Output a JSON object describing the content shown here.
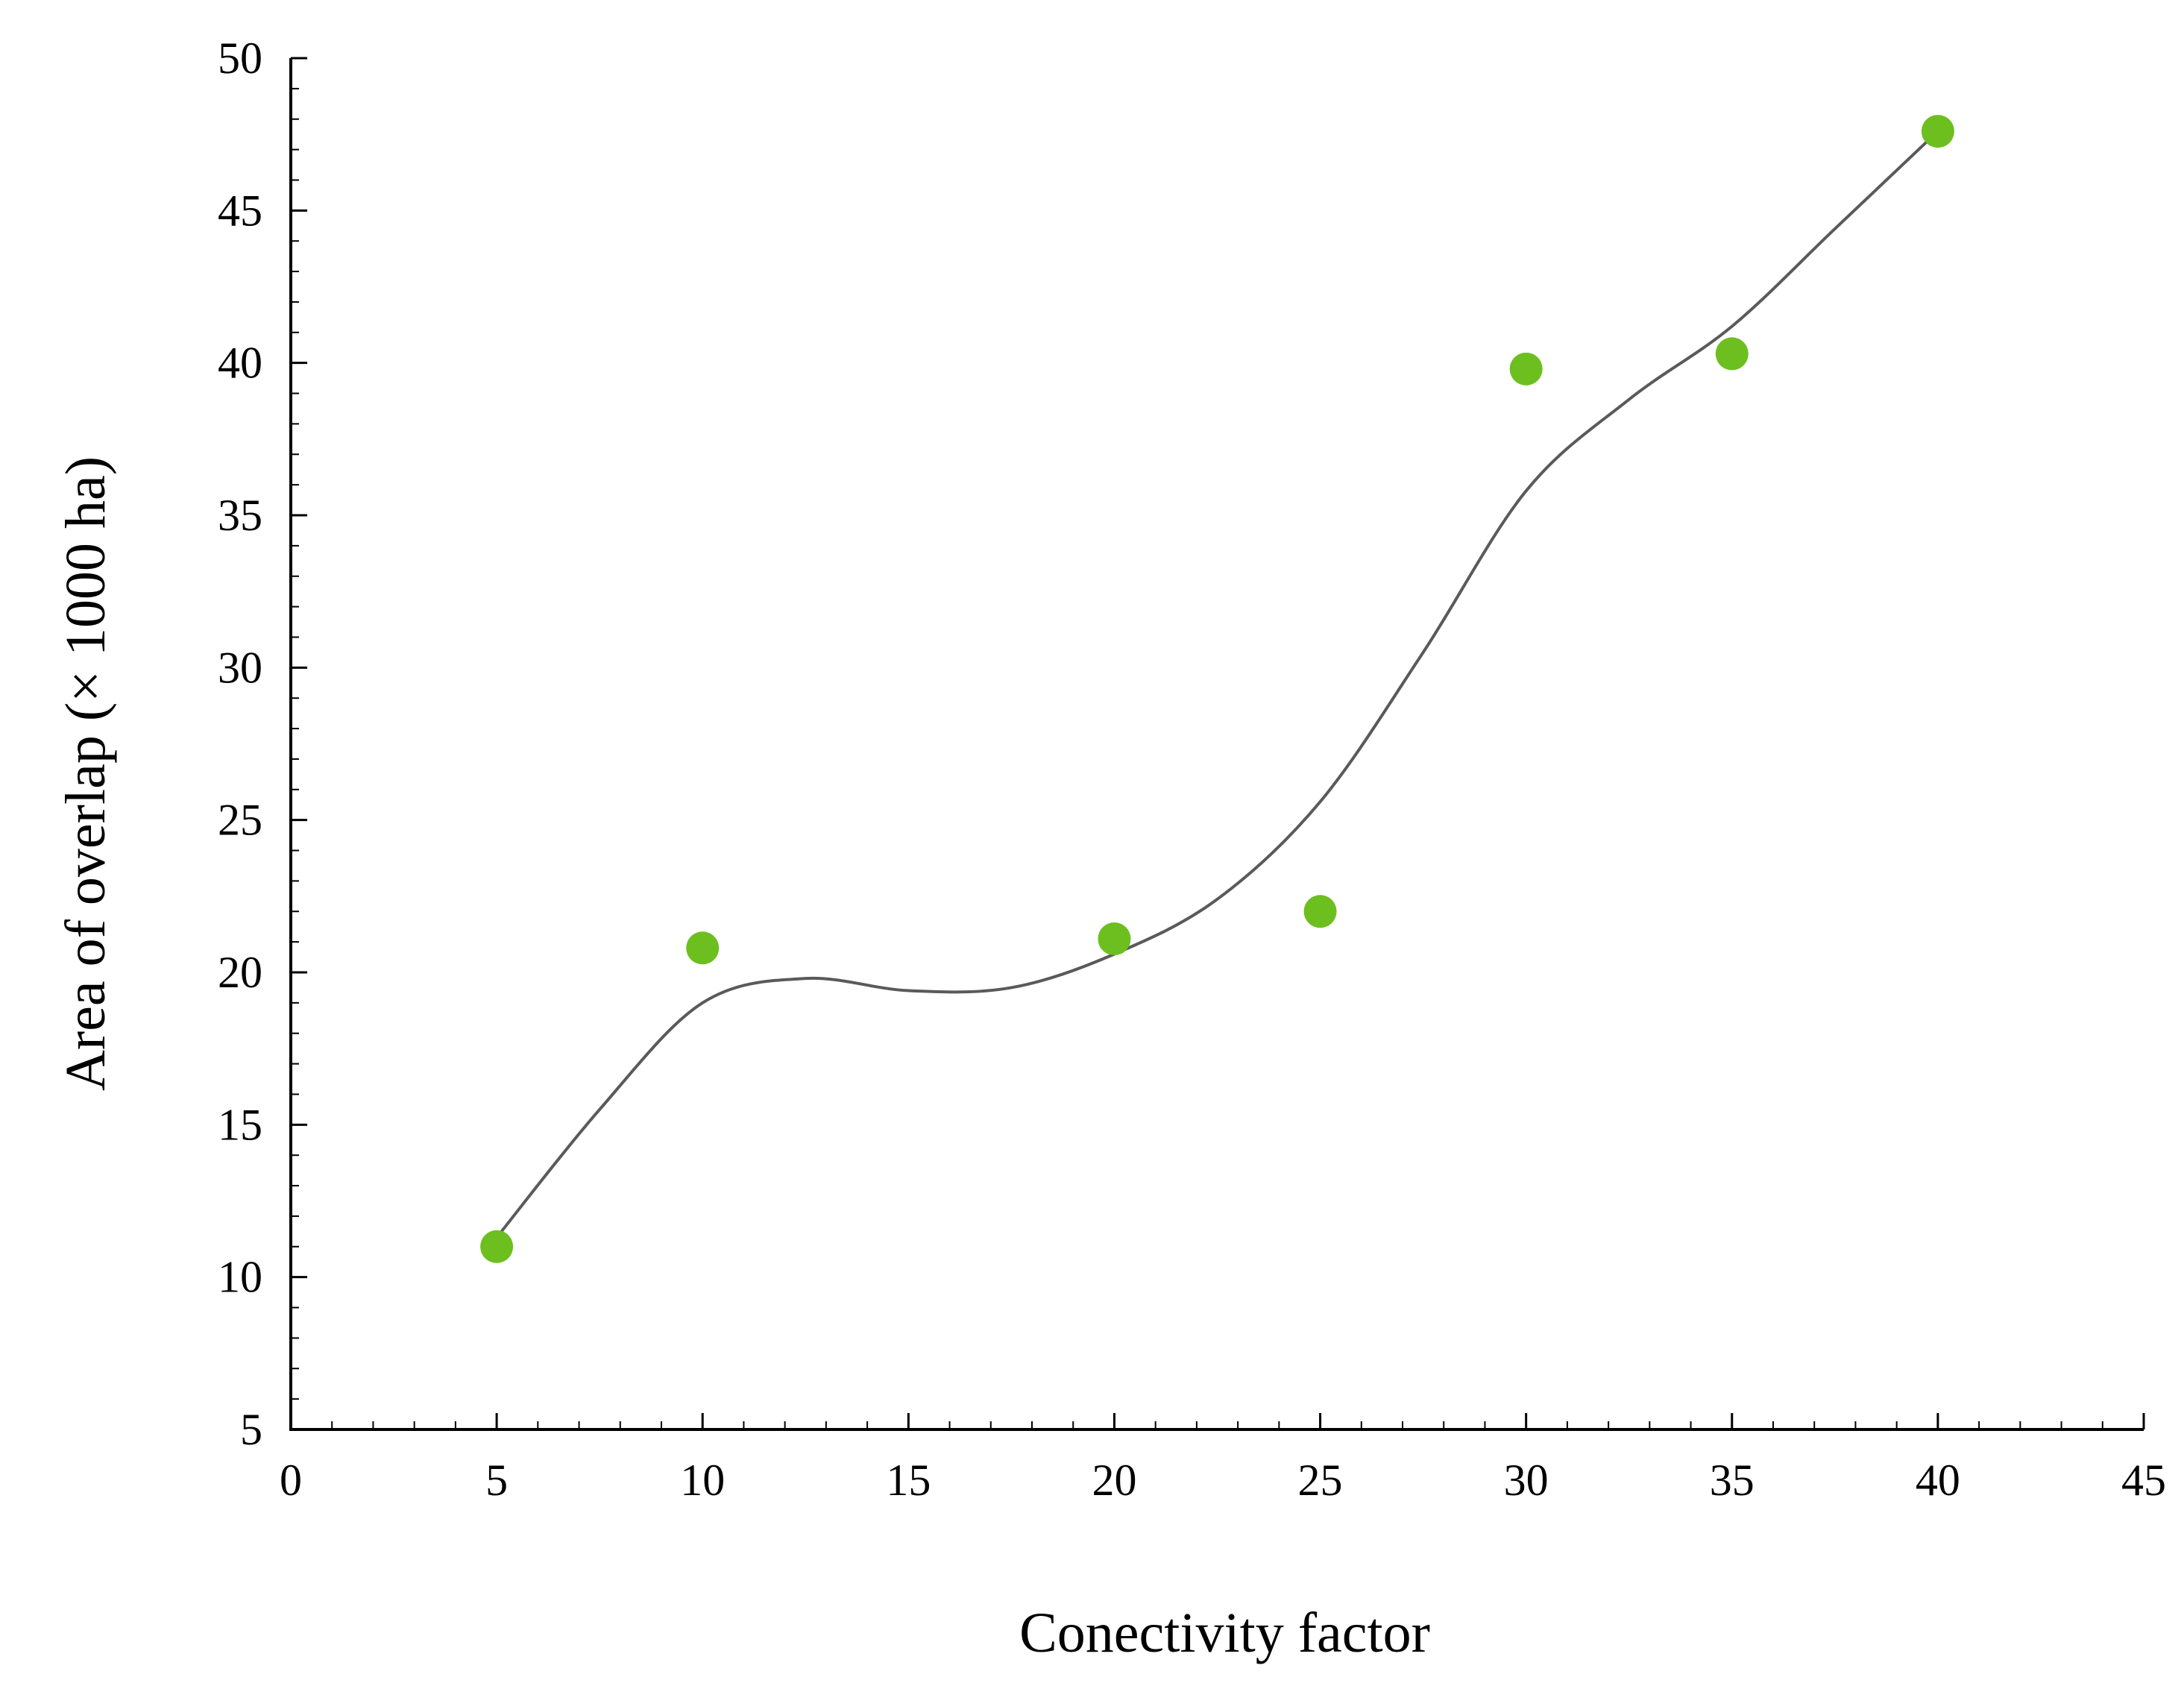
{
  "chart_data": {
    "type": "scatter",
    "title": "",
    "xlabel": "Conectivity factor",
    "ylabel": "Area of overlap  (× 1000 ha)",
    "xlim": [
      0,
      45
    ],
    "ylim": [
      5,
      50
    ],
    "xticks": [
      0,
      5,
      10,
      15,
      20,
      25,
      30,
      35,
      40,
      45
    ],
    "yticks": [
      5,
      10,
      15,
      20,
      25,
      30,
      35,
      40,
      45,
      50
    ],
    "grid": false,
    "legend": "none",
    "series": [
      {
        "x": [
          5,
          10,
          20,
          25,
          30,
          35,
          40
        ],
        "y": [
          11.0,
          20.8,
          21.1,
          22.0,
          39.8,
          40.3,
          47.6
        ],
        "marker_color": "#6cbf1f"
      }
    ],
    "fit_curve": {
      "type": "smooth-curve",
      "color": "#5a5a5a",
      "x": [
        5,
        7.5,
        10,
        12.5,
        15,
        17.5,
        20,
        22.5,
        25,
        27.5,
        30,
        32.5,
        35,
        37.5,
        40
      ],
      "y": [
        11.3,
        15.5,
        19.0,
        19.8,
        19.4,
        19.5,
        20.6,
        22.4,
        25.6,
        30.5,
        35.8,
        38.8,
        41.2,
        44.4,
        47.6
      ]
    }
  }
}
